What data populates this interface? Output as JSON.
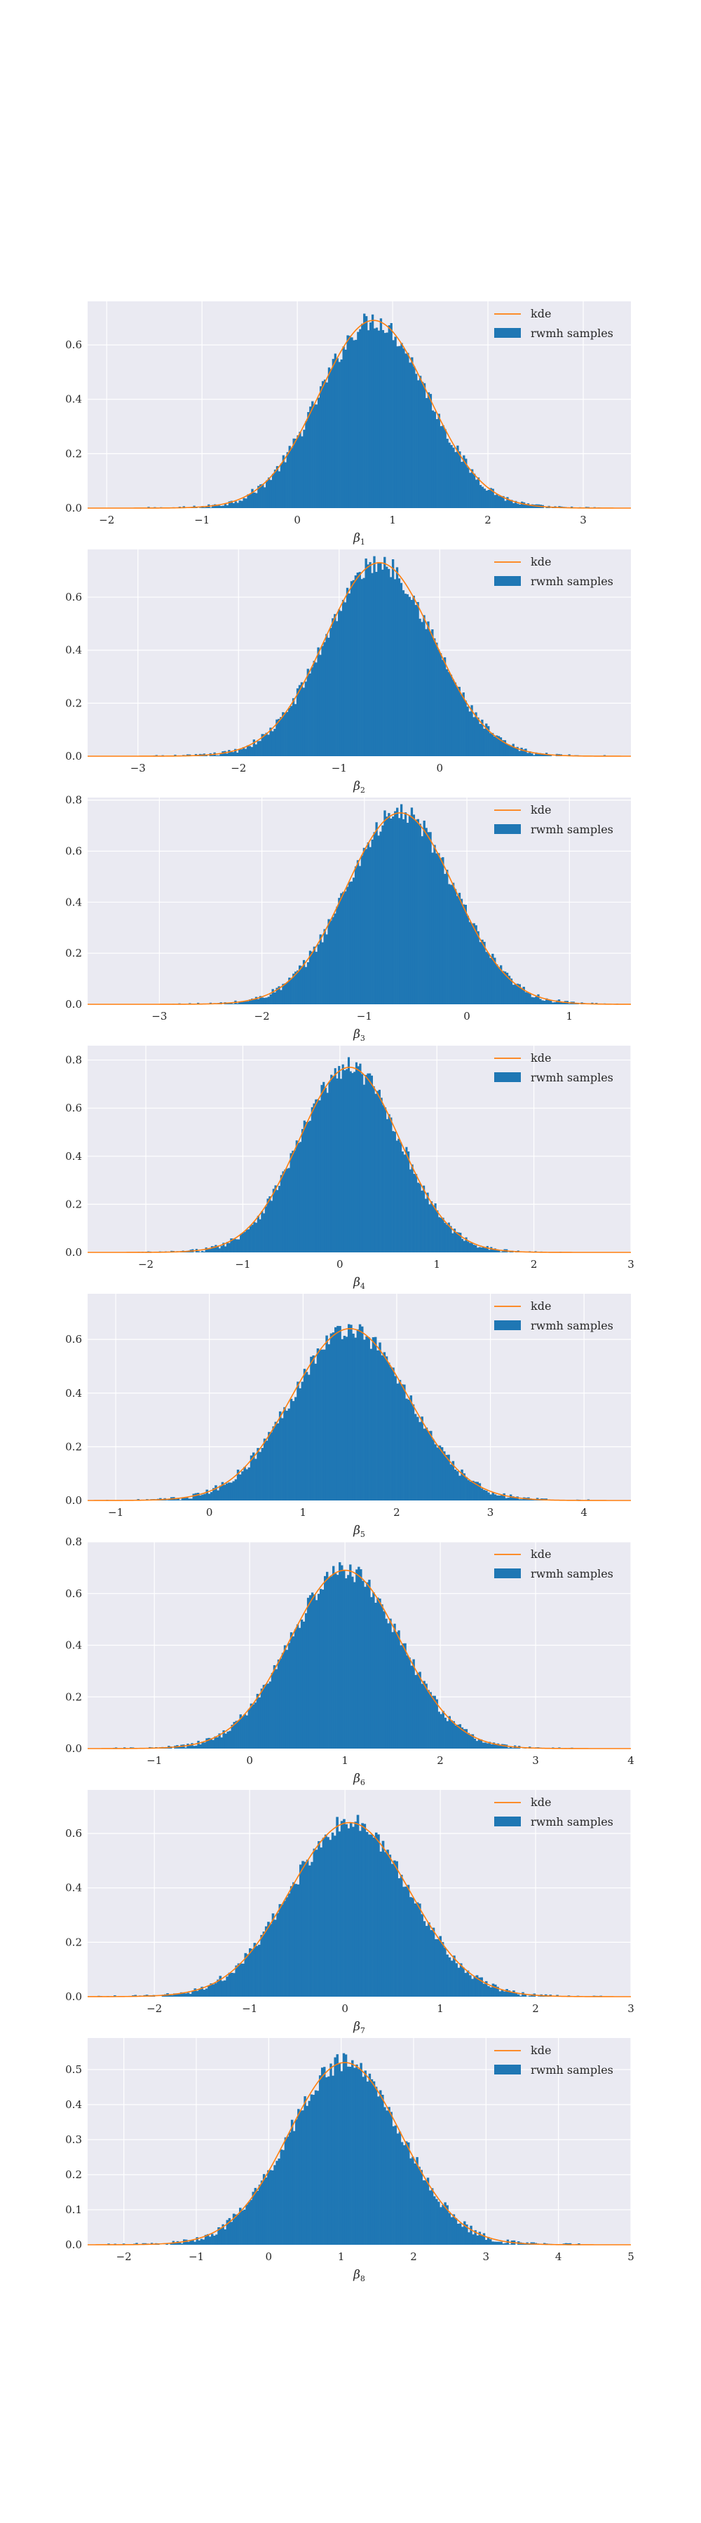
{
  "theme": {
    "panel_bg": "#eaeaf2",
    "grid": "#ffffff",
    "bar": "#1f77b4",
    "kde": "#ff7f0e",
    "text": "#262626"
  },
  "chart_data": [
    {
      "type": "histogram",
      "xlabel": "β",
      "xlabel_sub": "1",
      "xlim": [
        -2.2,
        3.5
      ],
      "ylim": [
        0,
        0.76
      ],
      "xticks": [
        -2,
        -1,
        0,
        1,
        2,
        3
      ],
      "yticks": [
        0.0,
        0.2,
        0.4,
        0.6
      ],
      "kde": {
        "mean": 0.8,
        "sd": 0.57,
        "peak": 0.69
      },
      "series": [
        {
          "name": "kde",
          "type": "line"
        },
        {
          "name": "rwmh samples",
          "type": "bar"
        }
      ],
      "legend": "top-right",
      "grid": true
    },
    {
      "type": "histogram",
      "xlabel": "β",
      "xlabel_sub": "2",
      "xlim": [
        -3.5,
        1.9
      ],
      "ylim": [
        0,
        0.78
      ],
      "xticks": [
        -3,
        -2,
        -1,
        0
      ],
      "yticks": [
        0.0,
        0.2,
        0.4,
        0.6
      ],
      "kde": {
        "mean": -0.6,
        "sd": 0.54,
        "peak": 0.73
      },
      "series": [
        {
          "name": "kde",
          "type": "line"
        },
        {
          "name": "rwmh samples",
          "type": "bar"
        }
      ],
      "legend": "top-right",
      "grid": true
    },
    {
      "type": "histogram",
      "xlabel": "β",
      "xlabel_sub": "3",
      "xlim": [
        -3.7,
        1.6
      ],
      "ylim": [
        0,
        0.81
      ],
      "xticks": [
        -3,
        -2,
        -1,
        0,
        1
      ],
      "yticks": [
        0.0,
        0.2,
        0.4,
        0.6,
        0.8
      ],
      "kde": {
        "mean": -0.65,
        "sd": 0.53,
        "peak": 0.75
      },
      "series": [
        {
          "name": "kde",
          "type": "line"
        },
        {
          "name": "rwmh samples",
          "type": "bar"
        }
      ],
      "legend": "top-right",
      "grid": true
    },
    {
      "type": "histogram",
      "xlabel": "β",
      "xlabel_sub": "4",
      "xlim": [
        -2.6,
        3.0
      ],
      "ylim": [
        0,
        0.86
      ],
      "xticks": [
        -2,
        -1,
        0,
        1,
        2,
        3
      ],
      "yticks": [
        0.0,
        0.2,
        0.4,
        0.6,
        0.8
      ],
      "kde": {
        "mean": 0.1,
        "sd": 0.52,
        "peak": 0.77
      },
      "series": [
        {
          "name": "kde",
          "type": "line"
        },
        {
          "name": "rwmh samples",
          "type": "bar"
        }
      ],
      "legend": "top-right",
      "grid": true
    },
    {
      "type": "histogram",
      "xlabel": "β",
      "xlabel_sub": "5",
      "xlim": [
        -1.3,
        4.5
      ],
      "ylim": [
        0,
        0.77
      ],
      "xticks": [
        -1,
        0,
        1,
        2,
        3,
        4
      ],
      "yticks": [
        0.0,
        0.2,
        0.4,
        0.6
      ],
      "kde": {
        "mean": 1.5,
        "sd": 0.62,
        "peak": 0.64
      },
      "series": [
        {
          "name": "kde",
          "type": "line"
        },
        {
          "name": "rwmh samples",
          "type": "bar"
        }
      ],
      "legend": "top-right",
      "grid": true
    },
    {
      "type": "histogram",
      "xlabel": "β",
      "xlabel_sub": "6",
      "xlim": [
        -1.7,
        4.0
      ],
      "ylim": [
        0,
        0.8
      ],
      "xticks": [
        -1,
        0,
        1,
        2,
        3,
        4
      ],
      "yticks": [
        0.0,
        0.2,
        0.4,
        0.6,
        0.8
      ],
      "kde": {
        "mean": 1.0,
        "sd": 0.58,
        "peak": 0.69
      },
      "series": [
        {
          "name": "kde",
          "type": "line"
        },
        {
          "name": "rwmh samples",
          "type": "bar"
        }
      ],
      "legend": "top-right",
      "grid": true
    },
    {
      "type": "histogram",
      "xlabel": "β",
      "xlabel_sub": "7",
      "xlim": [
        -2.7,
        3.0
      ],
      "ylim": [
        0,
        0.76
      ],
      "xticks": [
        -2,
        -1,
        0,
        1,
        2,
        3
      ],
      "yticks": [
        0.0,
        0.2,
        0.4,
        0.6
      ],
      "kde": {
        "mean": 0.05,
        "sd": 0.63,
        "peak": 0.64
      },
      "series": [
        {
          "name": "kde",
          "type": "line"
        },
        {
          "name": "rwmh samples",
          "type": "bar"
        }
      ],
      "legend": "top-right",
      "grid": true
    },
    {
      "type": "histogram",
      "xlabel": "β",
      "xlabel_sub": "8",
      "xlim": [
        -2.5,
        5.0
      ],
      "ylim": [
        0,
        0.59
      ],
      "xticks": [
        -2,
        -1,
        0,
        1,
        2,
        3,
        4,
        5
      ],
      "yticks": [
        0.0,
        0.1,
        0.2,
        0.3,
        0.4,
        0.5
      ],
      "kde": {
        "mean": 1.05,
        "sd": 0.78,
        "peak": 0.52
      },
      "series": [
        {
          "name": "kde",
          "type": "line"
        },
        {
          "name": "rwmh samples",
          "type": "bar"
        }
      ],
      "legend": "top-right",
      "grid": true
    }
  ]
}
